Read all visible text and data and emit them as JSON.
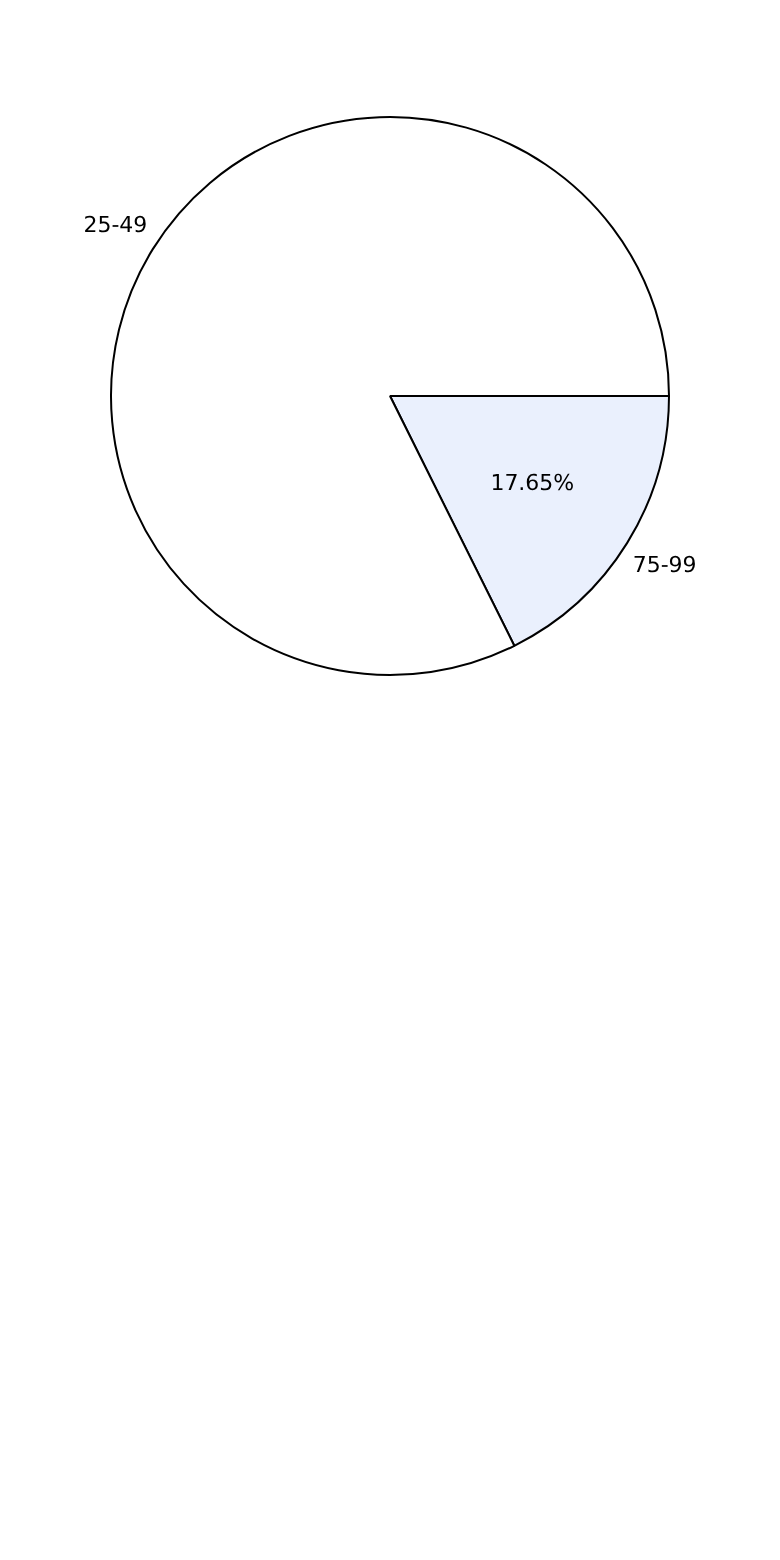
{
  "chart_data": {
    "type": "pie",
    "categories": [
      "75-99",
      "25-49"
    ],
    "values": [
      17.65,
      82.35
    ],
    "colors": [
      "#eaf0fd",
      "#ffffff"
    ],
    "value_labels": [
      "17.65%",
      null
    ],
    "legend": false
  }
}
